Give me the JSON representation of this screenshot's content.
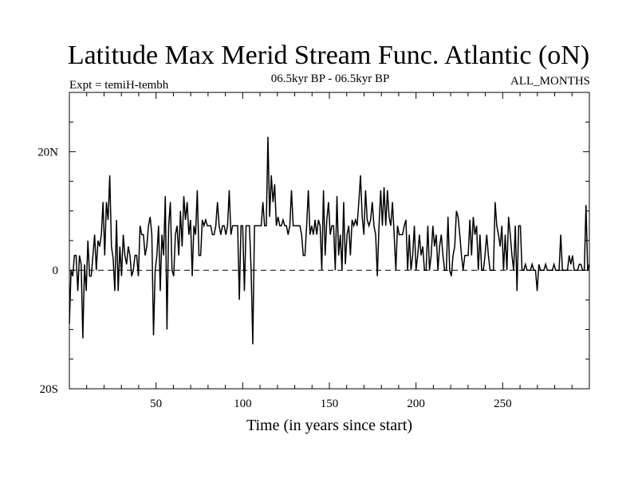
{
  "chart_data": {
    "type": "line",
    "title": "Latitude Max Merid Stream Func. Atlantic (oN)",
    "subtitle_left": "Expt = temiH-tembh",
    "subtitle_center": "06.5kyr BP - 06.5kyr BP",
    "subtitle_right": "ALL_MONTHS",
    "xlabel": "Time (in years since start)",
    "ylabel": "",
    "xlim": [
      0,
      300
    ],
    "ylim": [
      -20,
      30
    ],
    "x_ticks": [
      50,
      100,
      150,
      200,
      250
    ],
    "x_tick_labels": [
      "50",
      "100",
      "150",
      "200",
      "250"
    ],
    "y_ticks": [
      20,
      0,
      -20
    ],
    "y_tick_labels": [
      "20N",
      "0",
      "20S"
    ],
    "reference_line": {
      "y": 0,
      "style": "dashed"
    },
    "series": [
      {
        "name": "Latitude Max Merid Stream Func. Atlantic",
        "values": [
          -9,
          0,
          -1,
          2.5,
          2.5,
          -3.5,
          2.5,
          1,
          -11.5,
          1,
          -3.5,
          5,
          -1,
          -1,
          2.5,
          6,
          0,
          5,
          4,
          6,
          11.5,
          2.5,
          11.5,
          8.5,
          16,
          4,
          2,
          -3.5,
          8.5,
          -3.5,
          4,
          -1,
          6,
          2.5,
          1,
          4,
          2.5,
          -1,
          0,
          2.5,
          2.5,
          -1,
          7.5,
          6,
          6,
          2.5,
          4,
          7.5,
          9,
          6,
          -11,
          0,
          2.5,
          7.5,
          -3.5,
          6,
          2.5,
          12.5,
          -10,
          7.5,
          11.5,
          0,
          -1,
          6,
          7.5,
          2.5,
          10,
          4,
          12.5,
          8.5,
          11.5,
          6,
          8.5,
          -1,
          7.5,
          6,
          13.5,
          2.5,
          2.5,
          8.5,
          7.5,
          8.5,
          7.5,
          7.5,
          7.5,
          6,
          6,
          7.5,
          11.5,
          7.5,
          6,
          7.5,
          7.5,
          6,
          7.5,
          13.5,
          6,
          7.5,
          7.5,
          7.5,
          7.5,
          -5,
          7.5,
          7.5,
          -3.5,
          7.5,
          7.5,
          7.5,
          0,
          -12.5,
          7.5,
          7.5,
          7.5,
          7.5,
          7.5,
          11.5,
          7.5,
          7.5,
          22.5,
          9,
          16,
          11.5,
          14.5,
          7.5,
          9,
          7.5,
          7.5,
          8.5,
          7.5,
          7.5,
          6,
          7.5,
          13.5,
          7.5,
          7.5,
          7.5,
          7.5,
          7.5,
          6,
          2.5,
          2.5,
          7.5,
          13.5,
          6,
          7.5,
          6,
          8.5,
          6,
          8.5,
          7.5,
          0,
          13.5,
          2.5,
          8.5,
          11.5,
          6,
          7.5,
          7.5,
          0,
          12.5,
          2.5,
          6,
          0,
          11.5,
          1,
          6,
          7.5,
          2.5,
          8.5,
          7.5,
          8.5,
          7.5,
          11.5,
          16,
          9,
          6,
          13.5,
          8.5,
          7.5,
          8.5,
          11.5,
          7.5,
          6,
          -1,
          7.5,
          13.5,
          7.5,
          14,
          7.5,
          13.5,
          9,
          7.5,
          11.5,
          6,
          0,
          7.5,
          6,
          6,
          6,
          7.5,
          8.5,
          0,
          6,
          0,
          2.5,
          7.5,
          0,
          2.5,
          6,
          2.5,
          4,
          0,
          0,
          7.5,
          0,
          2.5,
          7.5,
          4,
          6,
          0,
          4,
          6,
          2.5,
          0,
          0,
          9,
          0,
          -1,
          2.5,
          4,
          10,
          9,
          6,
          2.5,
          0,
          2.5,
          2.5,
          2.5,
          8.5,
          2.5,
          9,
          6,
          7.5,
          0,
          6,
          0,
          0,
          2.5,
          6,
          2.5,
          0,
          0,
          0,
          11.5,
          7.5,
          6,
          4,
          7.5,
          0,
          6,
          0,
          9,
          6,
          2.5,
          0,
          7.5,
          -3.5,
          7.5,
          7.5,
          0,
          0,
          1,
          0,
          0,
          0,
          1,
          0,
          0,
          -3.5,
          1,
          0,
          0,
          0,
          1,
          0,
          0,
          0,
          0,
          1,
          0,
          0,
          0,
          6,
          0,
          0,
          0,
          0,
          2.5,
          1,
          2.5,
          0,
          0,
          0,
          1,
          1,
          0,
          0,
          11,
          0,
          1
        ]
      }
    ]
  }
}
